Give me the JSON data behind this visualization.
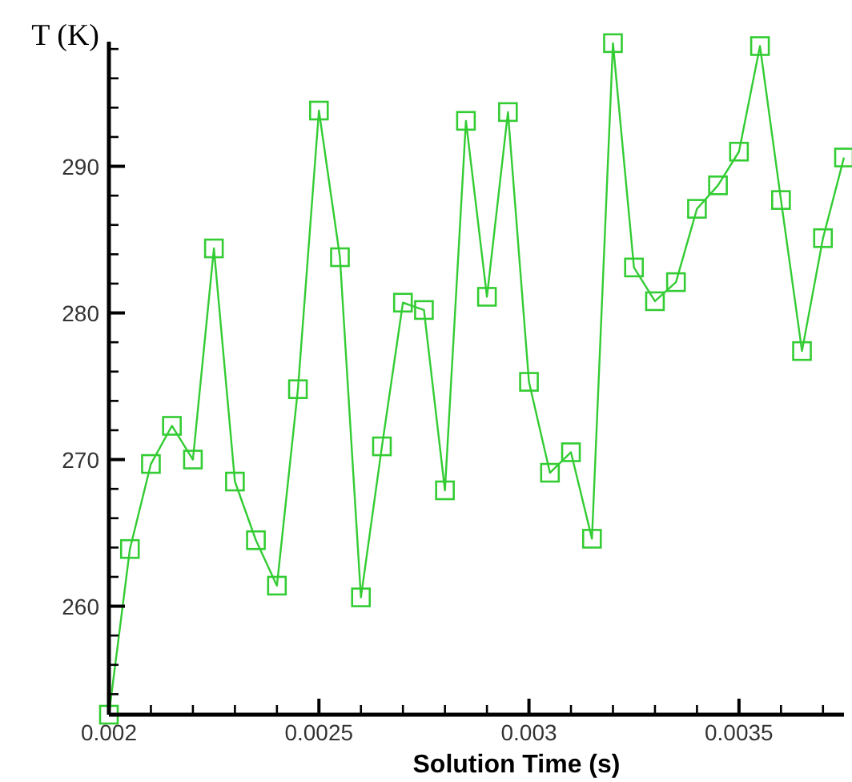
{
  "chart_data": {
    "type": "line",
    "xlabel": "Solution Time (s)",
    "ylabel": "T (K)",
    "x": [
      0.002,
      0.00205,
      0.0021,
      0.00215,
      0.0022,
      0.00225,
      0.0023,
      0.00235,
      0.0024,
      0.00245,
      0.0025,
      0.00255,
      0.0026,
      0.00265,
      0.0027,
      0.00275,
      0.0028,
      0.00285,
      0.0029,
      0.00295,
      0.003,
      0.00305,
      0.0031,
      0.00315,
      0.0032,
      0.00325,
      0.0033,
      0.00335,
      0.0034,
      0.00345,
      0.0035,
      0.00355,
      0.0036,
      0.00365,
      0.0037,
      0.00375
    ],
    "series": [
      {
        "color": "#33cc33",
        "values": [
          252.6,
          263.9,
          269.7,
          272.3,
          270.0,
          284.4,
          268.5,
          264.5,
          261.4,
          274.8,
          293.8,
          283.8,
          260.6,
          270.9,
          280.7,
          280.2,
          267.9,
          293.1,
          281.1,
          293.7,
          275.3,
          269.1,
          270.5,
          264.6,
          298.4,
          283.1,
          280.8,
          282.1,
          287.1,
          288.7,
          291.0,
          298.2,
          287.7,
          277.4,
          285.1,
          290.6
        ]
      }
    ],
    "xlim": [
      0.002,
      0.00375
    ],
    "xticks": [
      0.002,
      {
        "value": 0.0021,
        "label": null
      },
      {
        "value": 0.0022,
        "label": null
      },
      {
        "value": 0.0023,
        "label": null
      },
      {
        "value": 0.0024,
        "label": null
      },
      0.0025,
      {
        "value": 0.0026,
        "label": null
      },
      {
        "value": 0.0027,
        "label": null
      },
      {
        "value": 0.0028,
        "label": null
      },
      {
        "value": 0.0029,
        "label": null
      },
      0.003,
      {
        "value": 0.0031,
        "label": null
      },
      {
        "value": 0.0032,
        "label": null
      },
      {
        "value": 0.0033,
        "label": null
      },
      {
        "value": 0.0034,
        "label": null
      },
      0.0035,
      {
        "value": 0.0036,
        "label": null
      },
      {
        "value": 0.0037,
        "label": null
      }
    ],
    "ylim": [
      252.6,
      298.5
    ],
    "yticks": [
      {
        "value": 254,
        "label": null
      },
      {
        "value": 256,
        "label": null
      },
      {
        "value": 258,
        "label": null
      },
      260,
      {
        "value": 262,
        "label": null
      },
      {
        "value": 264,
        "label": null
      },
      {
        "value": 266,
        "label": null
      },
      {
        "value": 268,
        "label": null
      },
      270,
      {
        "value": 272,
        "label": null
      },
      {
        "value": 274,
        "label": null
      },
      {
        "value": 276,
        "label": null
      },
      {
        "value": 278,
        "label": null
      },
      280,
      {
        "value": 282,
        "label": null
      },
      {
        "value": 284,
        "label": null
      },
      {
        "value": 286,
        "label": null
      },
      {
        "value": 288,
        "label": null
      },
      290,
      {
        "value": 292,
        "label": null
      },
      {
        "value": 294,
        "label": null
      },
      {
        "value": 296,
        "label": null
      },
      {
        "value": 298,
        "label": null
      }
    ],
    "grid": false,
    "marker": "square",
    "line_style": "solid"
  }
}
